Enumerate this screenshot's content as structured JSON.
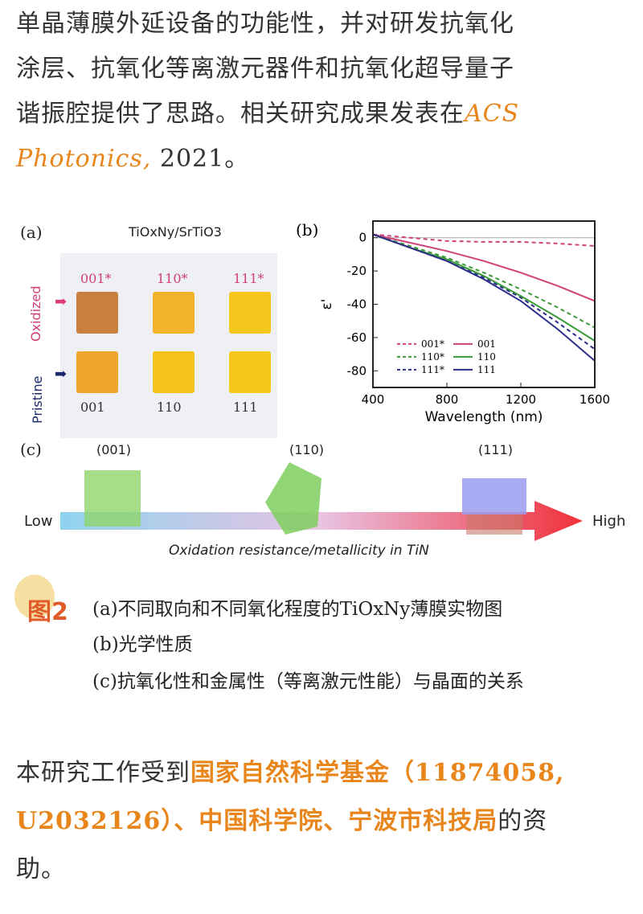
{
  "intro": {
    "line1": "单晶薄膜外延设备的功能性，并对研发抗氧化",
    "line2": "涂层、抗氧化等离激元器件和抗氧化超导量子",
    "line3": "谐振腔提供了思路。相关研究成果发表在",
    "journal1": "ACS",
    "journal2": "Photonics,",
    "year": " 2021",
    "end": "。"
  },
  "figure": {
    "a": {
      "label": "(a)",
      "title": "TiOxNy/SrTiO3",
      "row_oxidized": "Oxidized",
      "row_pristine": "Pristine",
      "top": [
        "001*",
        "110*",
        "111*"
      ],
      "bottom": [
        "001",
        "110",
        "111"
      ],
      "colors_oxidized": [
        "#c9803e",
        "#f2b32a",
        "#f5c61c"
      ],
      "colors_pristine": [
        "#eea62c",
        "#f5c21d",
        "#f6c81a"
      ]
    },
    "c": {
      "label": "(c)",
      "planes": [
        "(001)",
        "(110)",
        "(111)"
      ],
      "low": "Low",
      "high": "High",
      "axis": "Oxidation resistance/metallicity in TiN"
    }
  },
  "chart_data": {
    "type": "line",
    "label": "(b)",
    "xlabel": "Wavelength (nm)",
    "ylabel": "ε'",
    "xlim": [
      400,
      1600
    ],
    "ylim": [
      -90,
      10
    ],
    "xticks": [
      400,
      800,
      1200,
      1600
    ],
    "yticks": [
      0,
      -20,
      -40,
      -60,
      -80
    ],
    "legend": "bottom-left",
    "x": [
      400,
      600,
      800,
      1000,
      1200,
      1400,
      1600
    ],
    "series": [
      {
        "name": "001*",
        "color": "#d0407a",
        "dash": true,
        "values": [
          2,
          0,
          -2,
          -2.5,
          -2.5,
          -3.5,
          -5
        ]
      },
      {
        "name": "110*",
        "color": "#3a9a3a",
        "dash": true,
        "values": [
          2,
          -5,
          -12,
          -21,
          -31,
          -42,
          -54
        ]
      },
      {
        "name": "111*",
        "color": "#2c2f8a",
        "dash": true,
        "values": [
          2,
          -6,
          -14,
          -24,
          -36,
          -51,
          -67
        ]
      },
      {
        "name": "001",
        "color": "#d0407a",
        "dash": false,
        "values": [
          2,
          -3,
          -8,
          -14,
          -21,
          -29,
          -38
        ]
      },
      {
        "name": "110",
        "color": "#3a9a3a",
        "dash": false,
        "values": [
          2,
          -6,
          -13,
          -23,
          -35,
          -48,
          -62
        ]
      },
      {
        "name": "111",
        "color": "#2c2f8a",
        "dash": false,
        "values": [
          2,
          -6,
          -14,
          -25,
          -38,
          -55,
          -74
        ]
      }
    ]
  },
  "caption": {
    "badge": "图2",
    "a": "(a)不同取向和不同氧化程度的TiOxNy薄膜实物图",
    "b": "(b)光学性质",
    "c": "(c)抗氧化性和金属性（等离激元性能）与晶面的关系"
  },
  "funding": {
    "pre": "本研究工作受到",
    "fund1": "国家自然科学基金（11874058,",
    "fund2": "U2032126）、中国科学院、宁波市科技局",
    "post": "的资",
    "last": "助。"
  },
  "colors": {
    "accent": "#e8861c",
    "badge": "#e05a2a"
  }
}
